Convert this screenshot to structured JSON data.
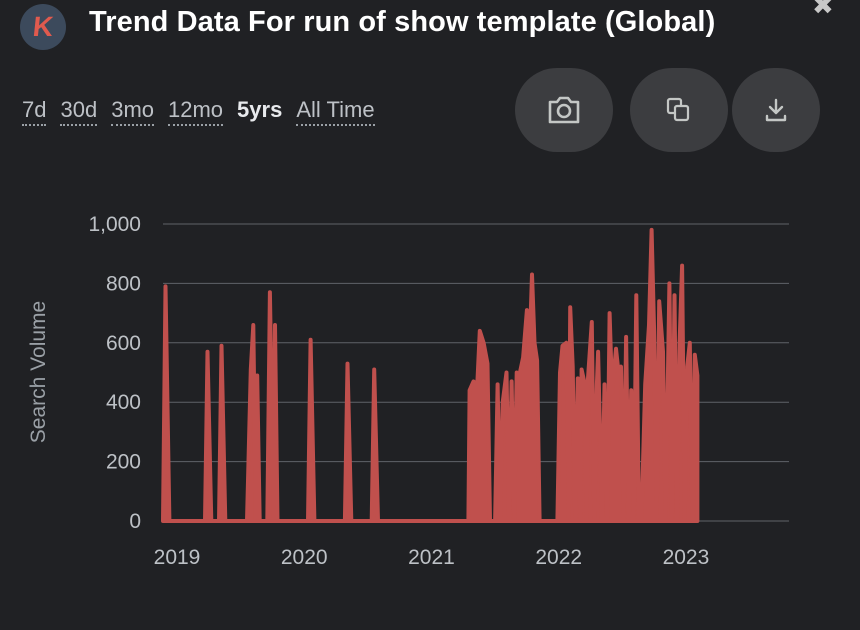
{
  "header": {
    "logo_letter": "K",
    "title": "Trend Data For run of show template (Global)",
    "close_symbol": "✖"
  },
  "ranges": [
    "7d",
    "30d",
    "3mo",
    "12mo",
    "5yrs",
    "All Time"
  ],
  "active_range": "5yrs",
  "buttons": {
    "screenshot_icon": "camera-icon",
    "copy_icon": "copy-icon",
    "download_icon": "download-icon"
  },
  "colors": {
    "background": "#202124",
    "bar": "#c0504d",
    "button": "#3c3d40",
    "logo_bg": "#3c4a5c",
    "logo_letter": "#e05a4e"
  },
  "chart_data": {
    "type": "area",
    "ylabel": "Search Volume",
    "xlabel": "",
    "ylim": [
      0,
      1000
    ],
    "yticks": [
      "0",
      "200",
      "400",
      "600",
      "800",
      "1,000"
    ],
    "ytick_values": [
      0,
      200,
      400,
      600,
      800,
      1000
    ],
    "xticks": [
      "2019",
      "2020",
      "2021",
      "2022",
      "2023"
    ],
    "xtick_values": [
      2019.0,
      2020.0,
      2021.0,
      2022.0,
      2023.0
    ],
    "xlim": [
      2019.0,
      2023.92
    ],
    "grid": true,
    "series": [
      {
        "values": [
          [
            2019.0,
            0
          ],
          [
            2019.02,
            790
          ],
          [
            2019.05,
            0
          ],
          [
            2019.33,
            0
          ],
          [
            2019.35,
            570
          ],
          [
            2019.38,
            0
          ],
          [
            2019.44,
            0
          ],
          [
            2019.46,
            590
          ],
          [
            2019.49,
            0
          ],
          [
            2019.66,
            0
          ],
          [
            2019.69,
            510
          ],
          [
            2019.71,
            660
          ],
          [
            2019.73,
            0
          ],
          [
            2019.74,
            490
          ],
          [
            2019.76,
            0
          ],
          [
            2019.82,
            0
          ],
          [
            2019.84,
            770
          ],
          [
            2019.87,
            0
          ],
          [
            2019.88,
            660
          ],
          [
            2019.9,
            0
          ],
          [
            2020.14,
            0
          ],
          [
            2020.16,
            610
          ],
          [
            2020.19,
            0
          ],
          [
            2020.43,
            0
          ],
          [
            2020.45,
            530
          ],
          [
            2020.48,
            0
          ],
          [
            2020.64,
            0
          ],
          [
            2020.66,
            510
          ],
          [
            2020.69,
            0
          ],
          [
            2021.4,
            0
          ],
          [
            2021.41,
            440
          ],
          [
            2021.44,
            470
          ],
          [
            2021.47,
            460
          ],
          [
            2021.49,
            640
          ],
          [
            2021.52,
            600
          ],
          [
            2021.55,
            530
          ],
          [
            2021.57,
            0
          ],
          [
            2021.61,
            0
          ],
          [
            2021.63,
            460
          ],
          [
            2021.65,
            0
          ],
          [
            2021.67,
            400
          ],
          [
            2021.7,
            500
          ],
          [
            2021.72,
            0
          ],
          [
            2021.74,
            470
          ],
          [
            2021.76,
            0
          ],
          [
            2021.78,
            500
          ],
          [
            2021.8,
            490
          ],
          [
            2021.83,
            550
          ],
          [
            2021.86,
            710
          ],
          [
            2021.88,
            560
          ],
          [
            2021.9,
            830
          ],
          [
            2021.92,
            600
          ],
          [
            2021.94,
            540
          ],
          [
            2021.96,
            0
          ],
          [
            2022.1,
            0
          ],
          [
            2022.12,
            500
          ],
          [
            2022.14,
            590
          ],
          [
            2022.17,
            600
          ],
          [
            2022.19,
            0
          ],
          [
            2022.2,
            720
          ],
          [
            2022.22,
            520
          ],
          [
            2022.24,
            0
          ],
          [
            2022.26,
            480
          ],
          [
            2022.28,
            0
          ],
          [
            2022.29,
            510
          ],
          [
            2022.31,
            470
          ],
          [
            2022.33,
            0
          ],
          [
            2022.34,
            480
          ],
          [
            2022.37,
            670
          ],
          [
            2022.39,
            0
          ],
          [
            2022.41,
            460
          ],
          [
            2022.42,
            570
          ],
          [
            2022.45,
            0
          ],
          [
            2022.47,
            460
          ],
          [
            2022.49,
            0
          ],
          [
            2022.51,
            700
          ],
          [
            2022.53,
            430
          ],
          [
            2022.56,
            580
          ],
          [
            2022.58,
            500
          ],
          [
            2022.6,
            520
          ],
          [
            2022.62,
            0
          ],
          [
            2022.64,
            620
          ],
          [
            2022.66,
            0
          ],
          [
            2022.68,
            440
          ],
          [
            2022.7,
            0
          ],
          [
            2022.72,
            760
          ],
          [
            2022.74,
            0
          ],
          [
            2022.76,
            0
          ],
          [
            2022.79,
            460
          ],
          [
            2022.82,
            660
          ],
          [
            2022.84,
            980
          ],
          [
            2022.86,
            640
          ],
          [
            2022.88,
            0
          ],
          [
            2022.9,
            740
          ],
          [
            2022.93,
            570
          ],
          [
            2022.95,
            0
          ],
          [
            2022.98,
            800
          ],
          [
            2023.0,
            0
          ],
          [
            2023.02,
            760
          ],
          [
            2023.04,
            0
          ],
          [
            2023.06,
            600
          ],
          [
            2023.08,
            860
          ],
          [
            2023.1,
            0
          ],
          [
            2023.12,
            520
          ],
          [
            2023.14,
            600
          ],
          [
            2023.16,
            0
          ],
          [
            2023.18,
            560
          ],
          [
            2023.2,
            490
          ]
        ]
      }
    ]
  }
}
